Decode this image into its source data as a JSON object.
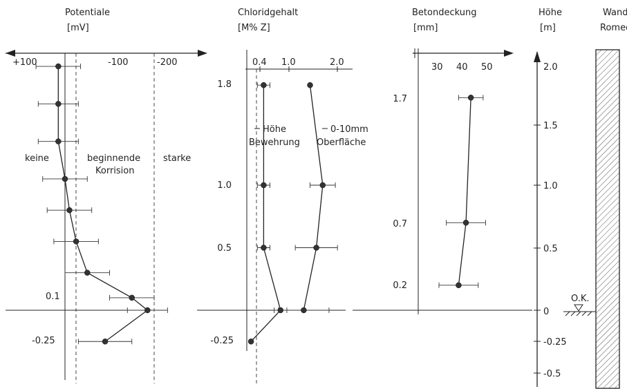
{
  "chart_data": [
    {
      "type": "scatter",
      "title": "Potentiale",
      "unit": "[mV]",
      "xlim": [
        100,
        -230
      ],
      "x_ticks": [
        "+100",
        "-100",
        "-200"
      ],
      "zone_labels": [
        "keine",
        "beginnende",
        "Korrision",
        "starke"
      ],
      "thresholds": [
        -50,
        -200
      ],
      "series": [
        {
          "values": [
            {
              "depth": 1.95,
              "x": 15,
              "err": 50
            },
            {
              "depth": 1.65,
              "x": 15,
              "err": 45
            },
            {
              "depth": 1.35,
              "x": 15,
              "err": 45
            },
            {
              "depth": 1.05,
              "x": 0,
              "err": 50
            },
            {
              "depth": 0.8,
              "x": -10,
              "err": 50
            },
            {
              "depth": 0.55,
              "x": -25,
              "err": 50
            },
            {
              "depth": 0.3,
              "x": -50,
              "err": 50
            },
            {
              "depth": 0.1,
              "x": -150,
              "err": 50
            },
            {
              "depth": 0.0,
              "x": -185,
              "err": 45
            },
            {
              "depth": -0.25,
              "x": -90,
              "err": 60
            }
          ]
        }
      ],
      "depth_labels": [
        "0.1",
        "-0.25"
      ]
    },
    {
      "type": "line",
      "title": "Chloridgehalt",
      "unit": "[M% Z]",
      "xlim": [
        0,
        2.4
      ],
      "x_ticks": [
        "0.4",
        "1.0",
        "2.0"
      ],
      "threshold": 0.4,
      "depth_labels": [
        "1.8",
        "1.0",
        "0.5",
        "-0.25"
      ],
      "series": [
        {
          "name_lines": [
            "Höhe",
            "Bewehrung"
          ],
          "values": [
            {
              "depth": 1.8,
              "x": 0.4,
              "err": 0.15
            },
            {
              "depth": 1.0,
              "x": 0.4,
              "err": 0.15
            },
            {
              "depth": 0.5,
              "x": 0.4,
              "err": 0.15
            },
            {
              "depth": 0.0,
              "x": 0.8,
              "err": 0.15
            },
            {
              "depth": -0.25,
              "x": 0.1,
              "err": 0
            }
          ]
        },
        {
          "name_lines": [
            "0-10mm",
            "Oberfläche"
          ],
          "values": [
            {
              "depth": 1.8,
              "x": 1.5,
              "err": 0
            },
            {
              "depth": 1.0,
              "x": 1.8,
              "err": 0.3
            },
            {
              "depth": 0.5,
              "x": 1.65,
              "err": 0.5
            },
            {
              "depth": 0.0,
              "x": 1.35,
              "err": 0.6
            }
          ]
        }
      ]
    },
    {
      "type": "scatter",
      "title": "Betondeckung",
      "unit": "[mm]",
      "xlim": [
        22,
        54
      ],
      "x_ticks": [
        "30",
        "40",
        "50"
      ],
      "depth_labels": [
        "1.7",
        "0.7",
        "0.2"
      ],
      "series": [
        {
          "values": [
            {
              "depth": 1.7,
              "x": 43,
              "err": 5
            },
            {
              "depth": 0.7,
              "x": 41,
              "err": 8
            },
            {
              "depth": 0.2,
              "x": 38,
              "err": 8
            }
          ]
        }
      ]
    },
    {
      "type": "axis",
      "title": "Höhe",
      "unit": "[m]",
      "ticks": [
        "2.0",
        "1.5",
        "1.0",
        "0.5",
        "0",
        "-0.25",
        "-0.5"
      ],
      "marker_label": "O.K."
    }
  ],
  "wall": {
    "title": "Wand",
    "subtitle": "Romed"
  }
}
